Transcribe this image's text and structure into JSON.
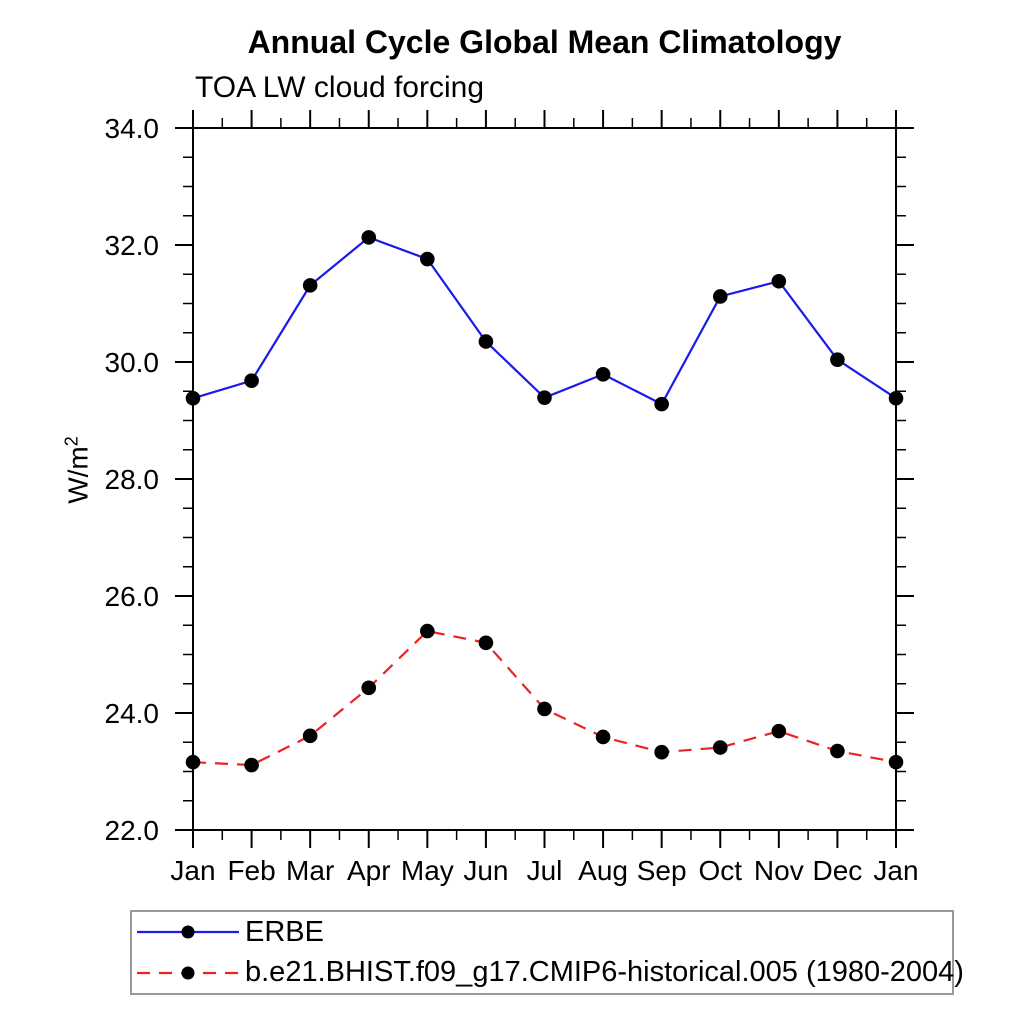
{
  "chart_data": {
    "type": "line",
    "title": "Annual Cycle Global Mean Climatology",
    "subtitle": "TOA LW cloud forcing",
    "ylabel_base": "W/m",
    "ylabel_exponent": "2",
    "xlabel": "",
    "ylim": [
      22.0,
      34.0
    ],
    "ytick_interval": 2.0,
    "ytick_minor_interval": 0.5,
    "ytick_labels": [
      "22.0",
      "24.0",
      "26.0",
      "28.0",
      "30.0",
      "32.0",
      "34.0"
    ],
    "categories": [
      "Jan",
      "Feb",
      "Mar",
      "Apr",
      "May",
      "Jun",
      "Jul",
      "Aug",
      "Sep",
      "Oct",
      "Nov",
      "Dec",
      "Jan"
    ],
    "grid": false,
    "legend_position": "bottom-left-box",
    "axis_color": "#000000",
    "background_color": "#ffffff",
    "series": [
      {
        "name": "ERBE",
        "color": "#1a1aee",
        "line_style": "solid",
        "marker": "filled-circle",
        "marker_color": "#000000",
        "values": [
          29.38,
          29.68,
          31.31,
          32.13,
          31.76,
          30.35,
          29.39,
          29.79,
          29.28,
          31.12,
          31.38,
          30.04,
          29.38
        ]
      },
      {
        "name": "b.e21.BHIST.f09_g17.CMIP6-historical.005 (1980-2004)",
        "color": "#ee2222",
        "line_style": "dashed",
        "marker": "filled-circle",
        "marker_color": "#000000",
        "values": [
          23.16,
          23.11,
          23.61,
          24.43,
          25.4,
          25.2,
          24.07,
          23.59,
          23.33,
          23.41,
          23.69,
          23.35,
          23.16
        ]
      }
    ]
  }
}
